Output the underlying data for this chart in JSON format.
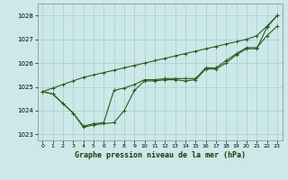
{
  "title": "Graphe pression niveau de la mer (hPa)",
  "bg_color": "#cce8e8",
  "grid_color": "#a8cccc",
  "line_color": "#2d5a1b",
  "xlim": [
    -0.5,
    23.5
  ],
  "ylim": [
    1022.75,
    1028.5
  ],
  "yticks": [
    1023,
    1024,
    1025,
    1026,
    1027,
    1028
  ],
  "xticks": [
    0,
    1,
    2,
    3,
    4,
    5,
    6,
    7,
    8,
    9,
    10,
    11,
    12,
    13,
    14,
    15,
    16,
    17,
    18,
    19,
    20,
    21,
    22,
    23
  ],
  "series_detail": [
    1024.8,
    1024.7,
    1024.3,
    1023.9,
    1023.3,
    1023.4,
    1023.45,
    1023.5,
    1024.0,
    1024.85,
    1025.25,
    1025.25,
    1025.3,
    1025.3,
    1025.25,
    1025.3,
    1025.75,
    1025.75,
    1026.0,
    1026.35,
    1026.6,
    1026.6,
    1027.5,
    1028.0
  ],
  "series_smooth": [
    1024.8,
    1024.7,
    1024.3,
    1023.9,
    1023.35,
    1023.45,
    1023.5,
    1024.85,
    1024.95,
    1025.1,
    1025.3,
    1025.3,
    1025.35,
    1025.35,
    1025.35,
    1025.35,
    1025.8,
    1025.8,
    1026.1,
    1026.4,
    1026.65,
    1026.65,
    1027.15,
    1027.55
  ],
  "series_linear": [
    1024.8,
    1024.95,
    1025.1,
    1025.25,
    1025.4,
    1025.5,
    1025.6,
    1025.7,
    1025.8,
    1025.9,
    1026.0,
    1026.1,
    1026.2,
    1026.3,
    1026.4,
    1026.5,
    1026.6,
    1026.7,
    1026.8,
    1026.9,
    1027.0,
    1027.15,
    1027.55,
    1028.0
  ]
}
